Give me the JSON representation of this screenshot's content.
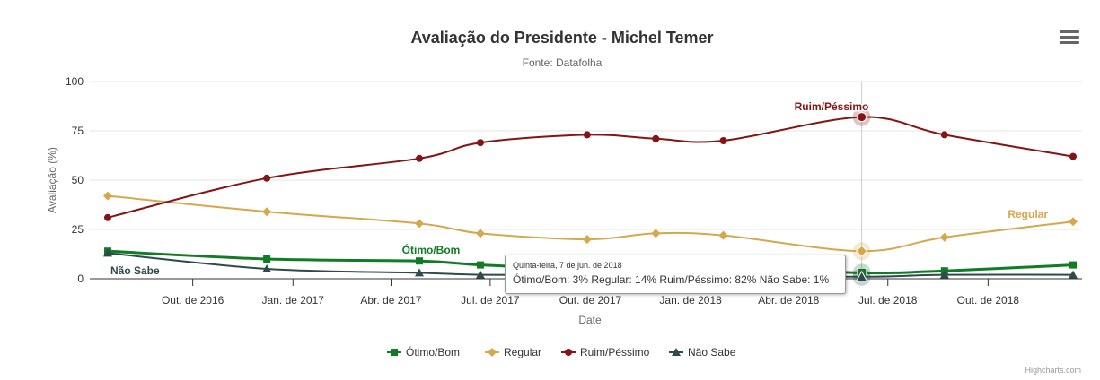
{
  "chart_data": {
    "type": "line",
    "title": "Avaliação do Presidente - Michel Temer",
    "subtitle": "Fonte: Datafolha",
    "xlabel": "Date",
    "ylabel": "Avaliação (%)",
    "ylim": [
      0,
      100
    ],
    "yticks": [
      "0",
      "25",
      "50",
      "75",
      "100"
    ],
    "xticks": [
      {
        "date": "2016-10-01",
        "label": "Out. de 2016"
      },
      {
        "date": "2017-01-01",
        "label": "Jan. de 2017"
      },
      {
        "date": "2017-04-01",
        "label": "Abr. de 2017"
      },
      {
        "date": "2017-07-01",
        "label": "Jul. de 2017"
      },
      {
        "date": "2017-10-01",
        "label": "Out. de 2017"
      },
      {
        "date": "2018-01-01",
        "label": "Jan. de 2018"
      },
      {
        "date": "2018-04-01",
        "label": "Abr. de 2018"
      },
      {
        "date": "2018-07-01",
        "label": "Jul. de 2018"
      },
      {
        "date": "2018-10-01",
        "label": "Out. de 2018"
      }
    ],
    "x": [
      "2016-07-15",
      "2016-12-08",
      "2017-04-27",
      "2017-06-22",
      "2017-09-28",
      "2017-11-30",
      "2018-01-31",
      "2018-06-07",
      "2018-08-22",
      "2018-12-18"
    ],
    "series": [
      {
        "name": "Ótimo/Bom",
        "color": "#107c24",
        "marker": "square",
        "values": [
          14,
          10,
          9,
          7,
          5,
          5,
          6,
          3,
          4,
          7
        ]
      },
      {
        "name": "Regular",
        "color": "#d4a84b",
        "marker": "diamond",
        "values": [
          42,
          34,
          28,
          23,
          20,
          23,
          22,
          14,
          21,
          29
        ]
      },
      {
        "name": "Ruim/Péssimo",
        "color": "#851414",
        "marker": "circle",
        "values": [
          31,
          51,
          61,
          69,
          73,
          71,
          70,
          82,
          73,
          62
        ]
      },
      {
        "name": "Não Sabe",
        "color": "#2e4a4a",
        "marker": "triangle",
        "values": [
          13,
          5,
          3,
          2,
          2,
          2,
          2,
          1,
          2,
          2
        ]
      }
    ],
    "legend": "bottom",
    "grid": true,
    "highlight_index": 7
  },
  "tooltip": {
    "date": "Quinta-feira, 7 de jun. de 2018",
    "values": "Ótimo/Bom: 3% Regular: 14% Ruim/Péssimo: 82% Não Sabe: 1%"
  },
  "credits": "Highcharts.com"
}
